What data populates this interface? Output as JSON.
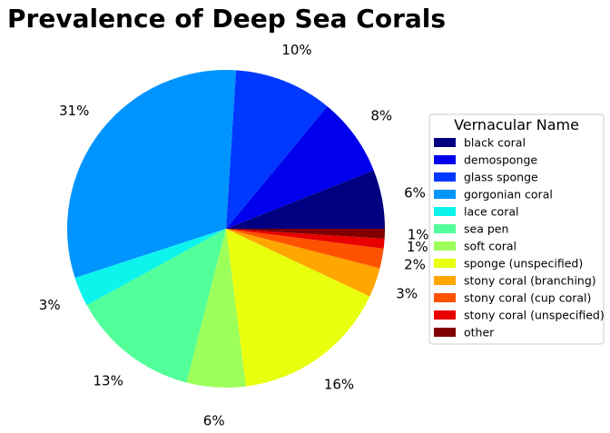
{
  "chart_data": {
    "type": "pie",
    "title": "Prevalence of Deep Sea Corals",
    "legend_title": "Vernacular Name",
    "legend_position": "right",
    "start_angle_deg": 0,
    "direction": "counterclockwise",
    "slices": [
      {
        "label": "black coral",
        "value": 6,
        "pct_label": "6%",
        "color": "#000080"
      },
      {
        "label": "demosponge",
        "value": 8,
        "pct_label": "8%",
        "color": "#0000ed"
      },
      {
        "label": "glass sponge",
        "value": 10,
        "pct_label": "10%",
        "color": "#0038ff"
      },
      {
        "label": "gorgonian coral",
        "value": 31,
        "pct_label": "31%",
        "color": "#0094ff"
      },
      {
        "label": "lace coral",
        "value": 3,
        "pct_label": "3%",
        "color": "#0cf4eb"
      },
      {
        "label": "sea pen",
        "value": 13,
        "pct_label": "13%",
        "color": "#53ff98"
      },
      {
        "label": "soft coral",
        "value": 6,
        "pct_label": "6%",
        "color": "#9cff5a"
      },
      {
        "label": "sponge (unspecified)",
        "value": 16,
        "pct_label": "16%",
        "color": "#e8ff0e"
      },
      {
        "label": "stony coral (branching)",
        "value": 3,
        "pct_label": "3%",
        "color": "#ffa600"
      },
      {
        "label": "stony coral (cup coral)",
        "value": 2,
        "pct_label": "2%",
        "color": "#ff5200"
      },
      {
        "label": "stony coral (unspecified)",
        "value": 1,
        "pct_label": "1%",
        "color": "#e80000"
      },
      {
        "label": "other",
        "value": 1,
        "pct_label": "1%",
        "color": "#800000"
      }
    ]
  }
}
